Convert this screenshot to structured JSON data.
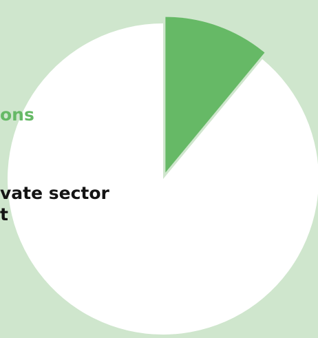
{
  "chart_data": {
    "type": "pie",
    "title": "",
    "slices": [
      {
        "label": "…ons",
        "value": 11,
        "color": "#66b966"
      },
      {
        "label": "…vate sector …t",
        "value": 89,
        "color": "#ffffff"
      }
    ],
    "exploded_slice": 0,
    "legend": "none"
  },
  "labels": {
    "green": {
      "lines": [
        "ons"
      ],
      "color": "#66b966"
    },
    "dark": {
      "lines": [
        "vate sector",
        "t"
      ],
      "color": "#141414"
    }
  },
  "colors": {
    "background": "#cfe6cd",
    "slice_green": "#66b966",
    "slice_white": "#ffffff"
  }
}
